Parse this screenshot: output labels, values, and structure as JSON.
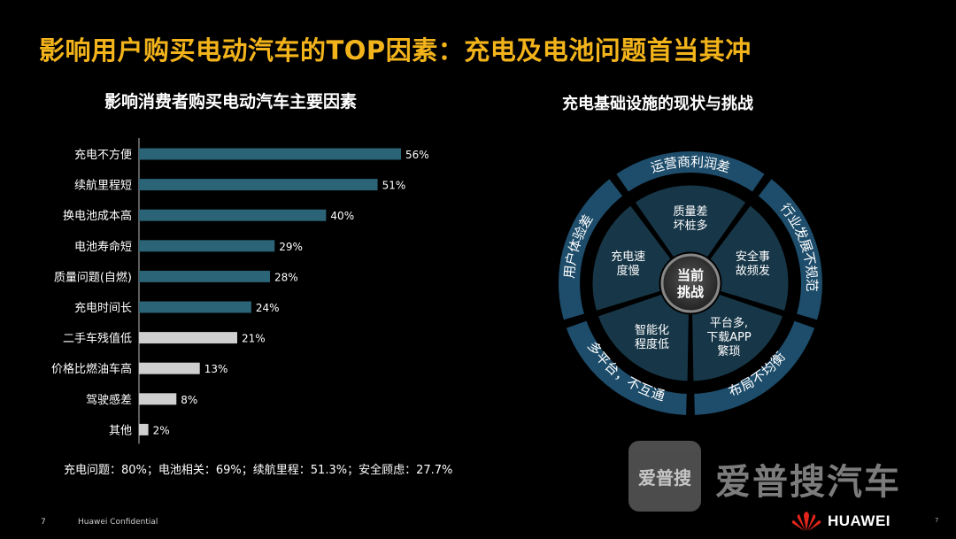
{
  "slide": {
    "title": "影响用户购买电动汽车的TOP因素：充电及电池问题首当其冲",
    "page_number": "7",
    "confidential": "Huawei Confidential",
    "page_number_right": "7",
    "brand": "HUAWEI",
    "watermark_box": "爱普搜",
    "watermark_text": "爱普搜汽车"
  },
  "left_panel": {
    "subtitle": "影响消费者购买电动汽车主要因素",
    "footnote": "充电问题：80%；电池相关：69%；续航里程：51.3%；安全顾虑：27.7%"
  },
  "chart_data": {
    "type": "bar",
    "orientation": "horizontal",
    "categories": [
      "充电不方便",
      "续航里程短",
      "换电池成本高",
      "电池寿命短",
      "质量问题(自燃)",
      "充电时间长",
      "二手车残值低",
      "价格比燃油车高",
      "驾驶感差",
      "其他"
    ],
    "values": [
      56,
      51,
      40,
      29,
      28,
      24,
      21,
      13,
      8,
      2
    ],
    "value_labels": [
      "56%",
      "51%",
      "40%",
      "29%",
      "28%",
      "24%",
      "21%",
      "13%",
      "8%",
      "2%"
    ],
    "colors": [
      "#2a6476",
      "#2a6476",
      "#2a6476",
      "#2a6476",
      "#2a6476",
      "#2a6476",
      "#cfcfcf",
      "#cfcfcf",
      "#cfcfcf",
      "#cfcfcf"
    ],
    "xlim": [
      0,
      60
    ],
    "grid": false
  },
  "right_panel": {
    "subtitle": "充电基础设施的现状与挑战",
    "center": [
      "当前",
      "挑战"
    ],
    "inner": [
      {
        "lines": [
          "质量差",
          "坏桩多"
        ]
      },
      {
        "lines": [
          "安全事",
          "故频发"
        ]
      },
      {
        "lines": [
          "平台多,",
          "下载APP",
          "繁琐"
        ]
      },
      {
        "lines": [
          "智能化",
          "程度低"
        ]
      },
      {
        "lines": [
          "充电速",
          "度慢"
        ]
      }
    ],
    "outer": [
      "运营商利润差",
      "行业发展不规范",
      "布局不均衡",
      "多平台，不互通",
      "用户体验差"
    ],
    "colors": {
      "outer_ring": "#1d4d6b",
      "inner": "#173748",
      "center": "#2b2b2b",
      "text": "#ffffff"
    }
  }
}
